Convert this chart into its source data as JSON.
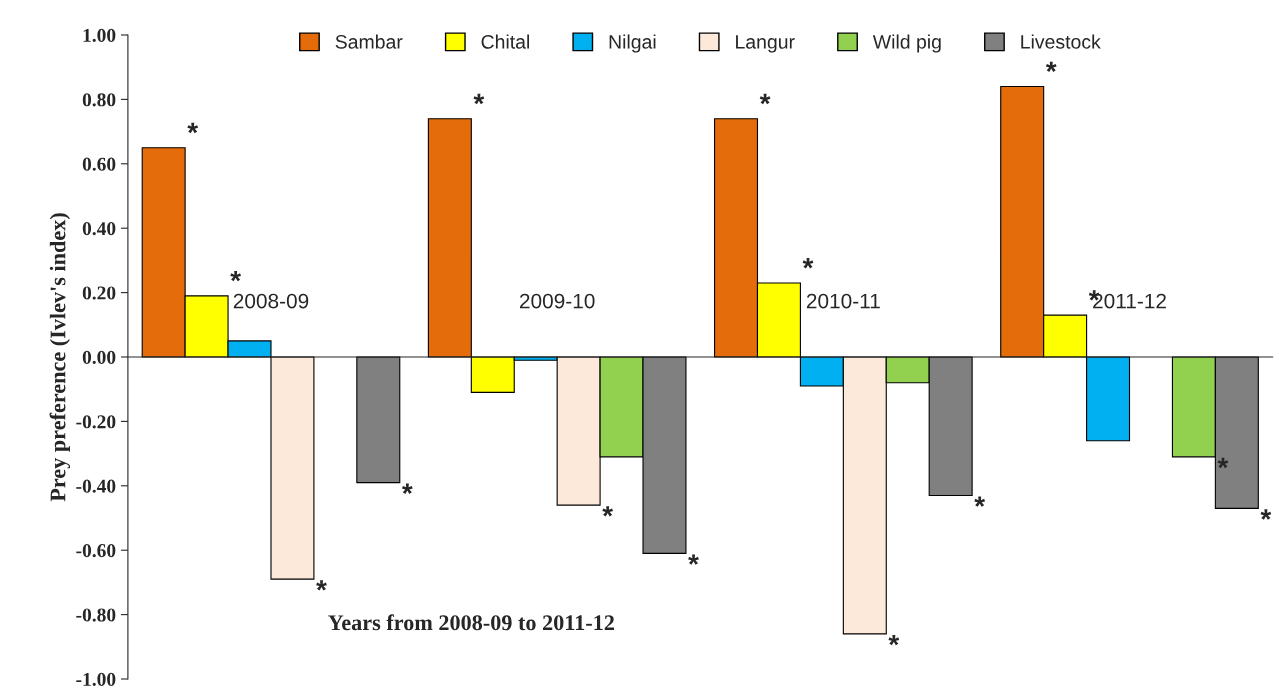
{
  "chart_data": {
    "type": "bar",
    "xlabel": "Years from 2008-09 to 2011-12",
    "ylabel": "Prey preference (Ivlev's index)",
    "categories": [
      "2008-09",
      "2009-10",
      "2010-11",
      "2011-12"
    ],
    "series": [
      {
        "name": "Sambar",
        "color": "#e46c0a",
        "values": [
          0.65,
          0.74,
          0.74,
          0.84
        ],
        "value_labels": [
          "*",
          "*",
          "*",
          "*"
        ]
      },
      {
        "name": "Chital",
        "color": "#ffff00",
        "values": [
          0.19,
          -0.11,
          0.23,
          0.13
        ],
        "value_labels": [
          "*",
          null,
          "*",
          "*"
        ]
      },
      {
        "name": "Nilgai",
        "color": "#00b0f0",
        "values": [
          0.05,
          -0.01,
          -0.09,
          -0.26
        ]
      },
      {
        "name": "Langur",
        "color": "#fde9d9",
        "values": [
          -0.69,
          -0.46,
          -0.86,
          null
        ],
        "value_labels": [
          "*",
          "*",
          "*",
          null
        ]
      },
      {
        "name": "Wild pig",
        "color": "#92d050",
        "values": [
          null,
          -0.31,
          -0.08,
          -0.31
        ],
        "value_labels": [
          null,
          null,
          null,
          "*"
        ]
      },
      {
        "name": "Livestock",
        "color": "#808080",
        "values": [
          -0.39,
          -0.61,
          -0.43,
          -0.47
        ],
        "value_labels": [
          "*",
          "*",
          "*",
          "*"
        ]
      }
    ],
    "ylim": [
      -1.0,
      1.0
    ],
    "yticks": [
      {
        "value": -1.0,
        "label": "-1.00"
      },
      {
        "value": -0.8,
        "label": "-0.80"
      },
      {
        "value": -0.6,
        "label": "-0.60"
      },
      {
        "value": -0.4,
        "label": "-0.40"
      },
      {
        "value": -0.2,
        "label": "-0.20"
      },
      {
        "value": 0.0,
        "label": "0.00"
      },
      {
        "value": 0.2,
        "label": "0.20"
      },
      {
        "value": 0.4,
        "label": "0.40"
      },
      {
        "value": 0.6,
        "label": "0.60"
      },
      {
        "value": 0.8,
        "label": "0.80"
      },
      {
        "value": 1.0,
        "label": "1.00"
      }
    ],
    "legend": "top"
  }
}
